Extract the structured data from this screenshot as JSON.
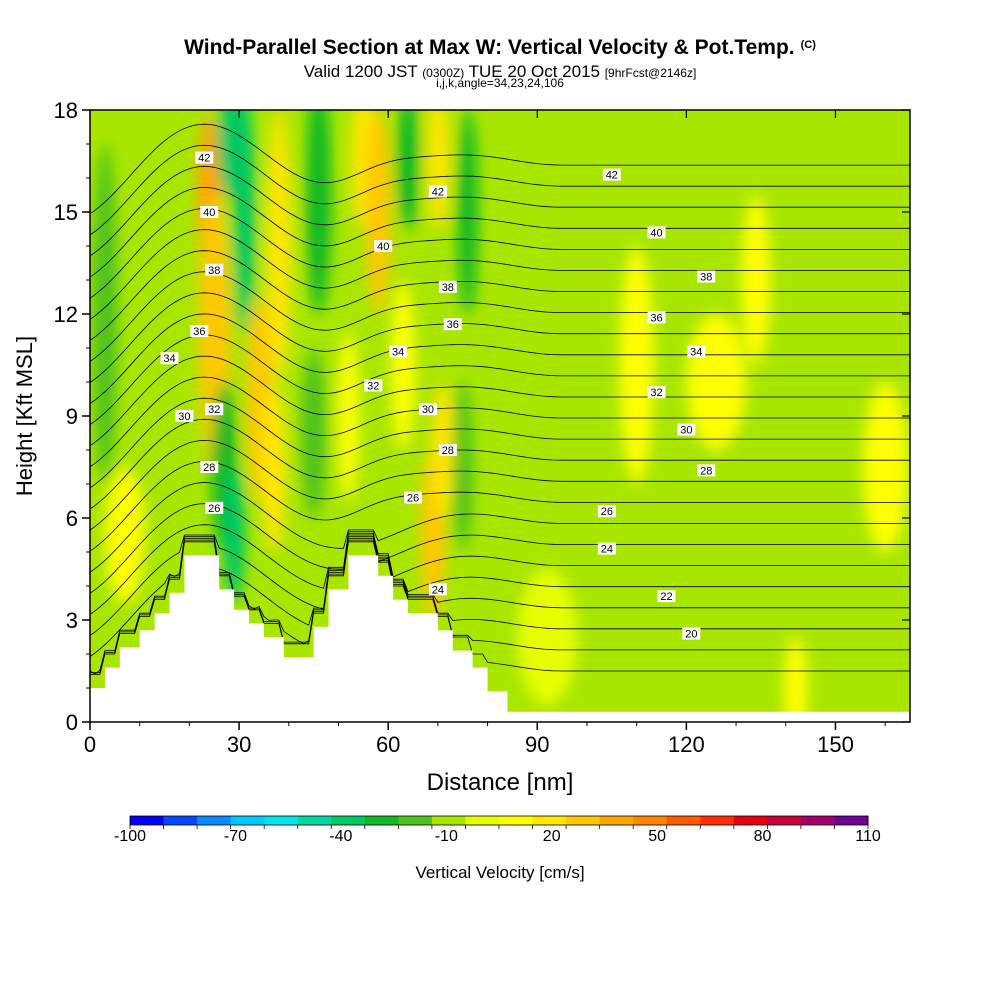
{
  "header": {
    "title": "Wind-Parallel Section at Max W: Vertical Velocity & Pot.Temp.",
    "copyright_mark": "(C)",
    "valid_prefix": "Valid 1200 JST",
    "valid_utc": "(0300Z)",
    "valid_date": "TUE 20 Oct 2015",
    "forecast_tag": "[9hrFcst@2146z]",
    "grid_info": "i,j,k,angle=34,23,24,106"
  },
  "colorbar": {
    "title": "Vertical Velocity [cm/s]",
    "labels": [
      "-100",
      "-70",
      "-40",
      "-10",
      "20",
      "50",
      "80",
      "110"
    ],
    "levels": [
      -100,
      -90,
      -80,
      -70,
      -60,
      -50,
      -40,
      -30,
      -20,
      -10,
      0,
      10,
      20,
      30,
      40,
      50,
      60,
      70,
      80,
      90,
      100,
      110
    ],
    "colors": [
      "#0000ff",
      "#0a46ff",
      "#0a88ff",
      "#00c8ff",
      "#00e6e6",
      "#00d7a0",
      "#00c864",
      "#10b828",
      "#4ec31b",
      "#a8e600",
      "#e6ff00",
      "#ffff00",
      "#ffe600",
      "#ffc800",
      "#ffa500",
      "#ff8200",
      "#ff5a00",
      "#ff2d00",
      "#e60014",
      "#c8003c",
      "#a0006e",
      "#6e0096"
    ]
  },
  "chart_data": {
    "type": "heatmap",
    "title": "Wind-Parallel Section at Max W: Vertical Velocity & Pot.Temp.",
    "xlabel": "Distance [nm]",
    "ylabel": "Height [Kft MSL]",
    "xlim": [
      0,
      165
    ],
    "ylim": [
      0,
      18
    ],
    "x_ticks": [
      0,
      30,
      60,
      90,
      120,
      150
    ],
    "y_ticks": [
      0,
      3,
      6,
      9,
      12,
      15,
      18
    ],
    "field": "vertical velocity (cm/s) shaded, potential temperature contours",
    "terrain": {
      "x": [
        0,
        3,
        3,
        6,
        6,
        10,
        10,
        13,
        13,
        16,
        16,
        19,
        19,
        26,
        26,
        29,
        29,
        32,
        32,
        35,
        35,
        39,
        39,
        45,
        45,
        48,
        48,
        52,
        52,
        58,
        58,
        61,
        61,
        64,
        64,
        70,
        70,
        73,
        73,
        77,
        77,
        80,
        80,
        84,
        84,
        91,
        91,
        165
      ],
      "height": [
        1.0,
        1.0,
        1.6,
        1.6,
        2.2,
        2.2,
        2.7,
        2.7,
        3.2,
        3.2,
        3.8,
        3.8,
        4.9,
        4.9,
        3.9,
        3.9,
        3.3,
        3.3,
        2.9,
        2.9,
        2.5,
        2.5,
        1.9,
        1.9,
        2.8,
        2.8,
        3.9,
        3.9,
        4.9,
        4.9,
        4.3,
        4.3,
        3.6,
        3.6,
        3.2,
        3.2,
        2.7,
        2.7,
        2.1,
        2.1,
        1.6,
        1.6,
        0.9,
        0.9,
        0.3,
        0.3,
        0.3,
        0.3
      ]
    },
    "w_cells": [
      {
        "x": 24,
        "z": 15.5,
        "dx": 2.5,
        "dz": 2.3,
        "w": 45
      },
      {
        "x": 25,
        "z": 11.5,
        "dx": 3.2,
        "dz": 4.0,
        "w": 35
      },
      {
        "x": 28,
        "z": 17,
        "dx": 2.5,
        "dz": 1.5,
        "w": -35
      },
      {
        "x": 31,
        "z": 15,
        "dx": 2.2,
        "dz": 3.5,
        "w": -35
      },
      {
        "x": 38,
        "z": 14,
        "dx": 2.5,
        "dz": 4.0,
        "w": 20
      },
      {
        "x": 46,
        "z": 15.5,
        "dx": 2.5,
        "dz": 3.5,
        "w": -30
      },
      {
        "x": 55,
        "z": 16.5,
        "dx": 2.5,
        "dz": 2.0,
        "w": 20
      },
      {
        "x": 58,
        "z": 15,
        "dx": 2.5,
        "dz": 3.0,
        "w": 30
      },
      {
        "x": 64,
        "z": 16.5,
        "dx": 2.2,
        "dz": 2.0,
        "w": -30
      },
      {
        "x": 70,
        "z": 16.5,
        "dx": 2.3,
        "dz": 2.0,
        "w": 25
      },
      {
        "x": 76,
        "z": 15,
        "dx": 2.0,
        "dz": 3.0,
        "w": -25
      },
      {
        "x": 34,
        "z": 9.5,
        "dx": 2.5,
        "dz": 3.0,
        "w": 35
      },
      {
        "x": 37,
        "z": 7.5,
        "dx": 2.5,
        "dz": 2.5,
        "w": 25
      },
      {
        "x": 27,
        "z": 7.5,
        "dx": 2.5,
        "dz": 2.5,
        "w": -30
      },
      {
        "x": 29,
        "z": 5.5,
        "dx": 2.2,
        "dz": 2.0,
        "w": -40
      },
      {
        "x": 45,
        "z": 8.5,
        "dx": 2.5,
        "dz": 2.5,
        "w": -15
      },
      {
        "x": 52,
        "z": 9,
        "dx": 2.2,
        "dz": 2.5,
        "w": 10
      },
      {
        "x": 63,
        "z": 10.5,
        "dx": 2.5,
        "dz": 2.5,
        "w": 10
      },
      {
        "x": 69,
        "z": 5.5,
        "dx": 2.5,
        "dz": 2.5,
        "w": 35
      },
      {
        "x": 71,
        "z": 8,
        "dx": 2.3,
        "dz": 2.0,
        "w": 25
      },
      {
        "x": 75,
        "z": 7.5,
        "dx": 2.0,
        "dz": 2.5,
        "w": -20
      },
      {
        "x": 110,
        "z": 10.5,
        "dx": 3.5,
        "dz": 3.5,
        "w": 15
      },
      {
        "x": 126,
        "z": 10,
        "dx": 6.0,
        "dz": 2.0,
        "w": 15
      },
      {
        "x": 134,
        "z": 13,
        "dx": 3.0,
        "dz": 2.5,
        "w": 15
      },
      {
        "x": 160,
        "z": 7.5,
        "dx": 4.5,
        "dz": 2.5,
        "w": 15
      },
      {
        "x": 142,
        "z": 1.0,
        "dx": 2.5,
        "dz": 1.5,
        "w": 15
      },
      {
        "x": 92,
        "z": 2.5,
        "dx": 6.0,
        "dz": 2.0,
        "w": 0
      },
      {
        "x": 7,
        "z": 5.5,
        "dx": 4.0,
        "dz": 2.0,
        "w": 15
      },
      {
        "x": 3,
        "z": 12,
        "dx": 2.5,
        "dz": 5.0,
        "w": -20
      }
    ],
    "theta_labels": [
      {
        "x": 23,
        "z": 16.6,
        "text": "42"
      },
      {
        "x": 24,
        "z": 15.0,
        "text": "40"
      },
      {
        "x": 25,
        "z": 13.3,
        "text": "38"
      },
      {
        "x": 22,
        "z": 11.5,
        "text": "36"
      },
      {
        "x": 16,
        "z": 10.7,
        "text": "34"
      },
      {
        "x": 25,
        "z": 9.2,
        "text": "32"
      },
      {
        "x": 19,
        "z": 9.0,
        "text": "30"
      },
      {
        "x": 24,
        "z": 7.5,
        "text": "28"
      },
      {
        "x": 25,
        "z": 6.3,
        "text": "26"
      },
      {
        "x": 70,
        "z": 15.6,
        "text": "42"
      },
      {
        "x": 59,
        "z": 14.0,
        "text": "40"
      },
      {
        "x": 72,
        "z": 12.8,
        "text": "38"
      },
      {
        "x": 73,
        "z": 11.7,
        "text": "36"
      },
      {
        "x": 62,
        "z": 10.9,
        "text": "34"
      },
      {
        "x": 57,
        "z": 9.9,
        "text": "32"
      },
      {
        "x": 68,
        "z": 9.2,
        "text": "30"
      },
      {
        "x": 72,
        "z": 8.0,
        "text": "28"
      },
      {
        "x": 65,
        "z": 6.6,
        "text": "26"
      },
      {
        "x": 70,
        "z": 3.9,
        "text": "24"
      },
      {
        "x": 105,
        "z": 16.1,
        "text": "42"
      },
      {
        "x": 114,
        "z": 14.4,
        "text": "40"
      },
      {
        "x": 124,
        "z": 13.1,
        "text": "38"
      },
      {
        "x": 114,
        "z": 11.9,
        "text": "36"
      },
      {
        "x": 122,
        "z": 10.9,
        "text": "34"
      },
      {
        "x": 114,
        "z": 9.7,
        "text": "32"
      },
      {
        "x": 120,
        "z": 8.6,
        "text": "30"
      },
      {
        "x": 124,
        "z": 7.4,
        "text": "28"
      },
      {
        "x": 104,
        "z": 6.2,
        "text": "26"
      },
      {
        "x": 104,
        "z": 5.1,
        "text": "24"
      },
      {
        "x": 116,
        "z": 3.7,
        "text": "22"
      },
      {
        "x": 121,
        "z": 2.6,
        "text": "20"
      }
    ]
  }
}
